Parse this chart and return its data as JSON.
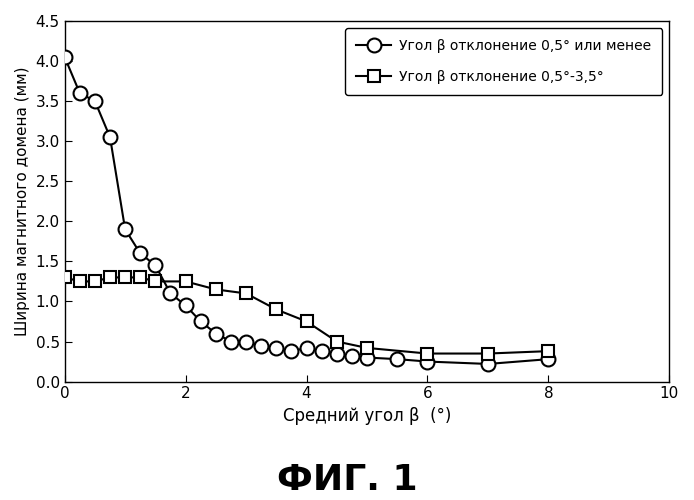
{
  "series1_label": "Угол β отклонение 0,5° или менее",
  "series2_label": "Угол β отклонение 0,5°-3,5°",
  "series1_x": [
    0.0,
    0.25,
    0.5,
    0.75,
    1.0,
    1.25,
    1.5,
    1.75,
    2.0,
    2.25,
    2.5,
    2.75,
    3.0,
    3.25,
    3.5,
    3.75,
    4.0,
    4.25,
    4.5,
    4.75,
    5.0,
    5.5,
    6.0,
    7.0,
    8.0
  ],
  "series1_y": [
    4.05,
    3.6,
    3.5,
    3.05,
    1.9,
    1.6,
    1.45,
    1.1,
    0.95,
    0.75,
    0.6,
    0.5,
    0.5,
    0.45,
    0.42,
    0.38,
    0.42,
    0.38,
    0.35,
    0.32,
    0.3,
    0.28,
    0.25,
    0.22,
    0.28
  ],
  "series2_x": [
    0.0,
    0.25,
    0.5,
    0.75,
    1.0,
    1.25,
    1.5,
    2.0,
    2.5,
    3.0,
    3.5,
    4.0,
    4.5,
    5.0,
    6.0,
    7.0,
    8.0
  ],
  "series2_y": [
    1.3,
    1.25,
    1.25,
    1.3,
    1.3,
    1.3,
    1.25,
    1.25,
    1.15,
    1.1,
    0.9,
    0.75,
    0.5,
    0.42,
    0.35,
    0.35,
    0.38
  ],
  "xlabel": "Средний угол β  (°)",
  "ylabel": "Ширина магнитного домена (мм)",
  "xlim": [
    0,
    10
  ],
  "ylim": [
    0,
    4.5
  ],
  "xticks": [
    0,
    2,
    4,
    6,
    8,
    10
  ],
  "yticks": [
    0,
    0.5,
    1.0,
    1.5,
    2.0,
    2.5,
    3.0,
    3.5,
    4.0,
    4.5
  ],
  "title": "ФИГ. 1",
  "line_color": "#000000",
  "bg_color": "#ffffff",
  "figsize": [
    6.94,
    5.0
  ],
  "dpi": 100
}
